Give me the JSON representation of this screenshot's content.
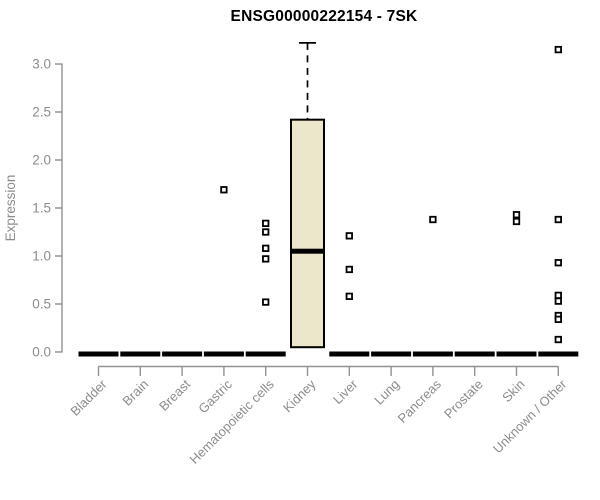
{
  "title": "ENSG00000222154 - 7SK",
  "colors": {
    "background": "#ffffff",
    "title_text": "#000000",
    "axis": "#919191",
    "tick_text": "#8c8c8c",
    "box_fill": "#ece7cb",
    "box_line": "#000000",
    "outlier_fill": "#ffffff"
  },
  "chart_data": {
    "type": "box",
    "title": "ENSG00000222154 - 7SK",
    "xlabel": "",
    "ylabel": "Expression",
    "ylim": [
      0,
      3.25
    ],
    "yticks": [
      0.0,
      0.5,
      1.0,
      1.5,
      2.0,
      2.5,
      3.0
    ],
    "grid": false,
    "legend": "none",
    "categories": [
      "Bladder",
      "Brain",
      "Breast",
      "Gastric",
      "Hematopoietic cells",
      "Kidney",
      "Liver",
      "Lung",
      "Pancreas",
      "Prostate",
      "Skin",
      "Unknown / Other"
    ],
    "series": [
      {
        "name": "Bladder",
        "whisker_low": 0,
        "q1": 0,
        "median": 0,
        "q3": 0,
        "whisker_high": 0,
        "outliers": []
      },
      {
        "name": "Brain",
        "whisker_low": 0,
        "q1": 0,
        "median": 0,
        "q3": 0,
        "whisker_high": 0,
        "outliers": []
      },
      {
        "name": "Breast",
        "whisker_low": 0,
        "q1": 0,
        "median": 0,
        "q3": 0,
        "whisker_high": 0,
        "outliers": []
      },
      {
        "name": "Gastric",
        "whisker_low": 0,
        "q1": 0,
        "median": 0,
        "q3": 0,
        "whisker_high": 0,
        "outliers": [
          1.69
        ]
      },
      {
        "name": "Hematopoietic cells",
        "whisker_low": 0,
        "q1": 0,
        "median": 0,
        "q3": 0,
        "whisker_high": 0,
        "outliers": [
          1.34,
          1.25,
          1.08,
          0.97,
          0.52
        ]
      },
      {
        "name": "Kidney",
        "whisker_low": 0.05,
        "q1": 0.05,
        "median": 1.05,
        "q3": 2.42,
        "whisker_high": 3.22,
        "outliers": []
      },
      {
        "name": "Liver",
        "whisker_low": 0,
        "q1": 0,
        "median": 0,
        "q3": 0,
        "whisker_high": 0,
        "outliers": [
          1.21,
          0.86,
          0.58
        ]
      },
      {
        "name": "Lung",
        "whisker_low": 0,
        "q1": 0,
        "median": 0,
        "q3": 0,
        "whisker_high": 0,
        "outliers": []
      },
      {
        "name": "Pancreas",
        "whisker_low": 0,
        "q1": 0,
        "median": 0,
        "q3": 0,
        "whisker_high": 0,
        "outliers": [
          1.38
        ]
      },
      {
        "name": "Prostate",
        "whisker_low": 0,
        "q1": 0,
        "median": 0,
        "q3": 0,
        "whisker_high": 0,
        "outliers": []
      },
      {
        "name": "Skin",
        "whisker_low": 0,
        "q1": 0,
        "median": 0,
        "q3": 0,
        "whisker_high": 0,
        "outliers": [
          1.43,
          1.36
        ]
      },
      {
        "name": "Unknown / Other",
        "whisker_low": 0,
        "q1": 0,
        "median": 0,
        "q3": 0,
        "whisker_high": 0,
        "outliers": [
          3.15,
          1.38,
          0.93,
          0.59,
          0.53,
          0.38,
          0.34,
          0.13
        ]
      }
    ]
  }
}
